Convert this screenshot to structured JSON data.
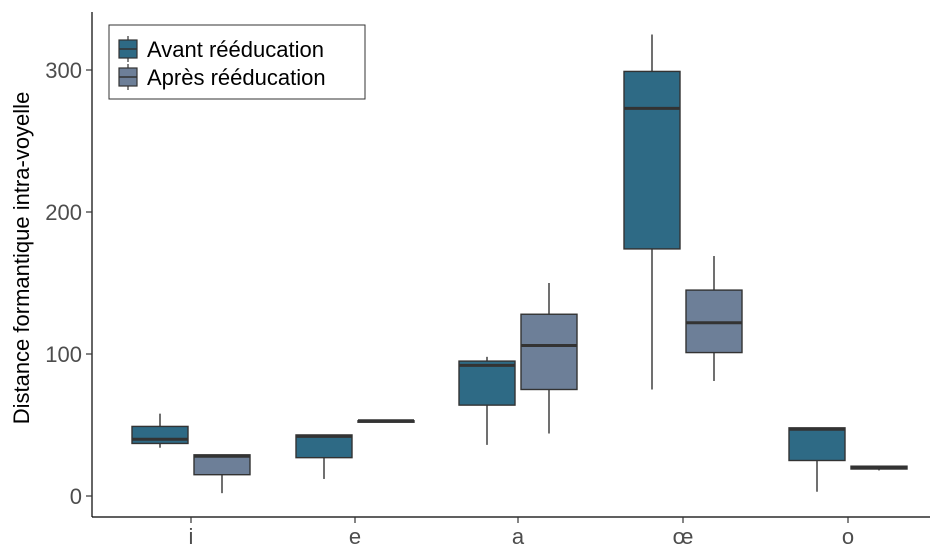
{
  "chart_data": {
    "type": "boxplot",
    "title": "",
    "xlabel": "",
    "ylabel": "Distance formantique intra-voyelle",
    "ylim": [
      -15,
      340
    ],
    "yticks": [
      0,
      100,
      200,
      300
    ],
    "grid": false,
    "legend_position": "top-left",
    "categories": [
      "i",
      "e",
      "a",
      "œ",
      "o"
    ],
    "series": [
      {
        "name": "Avant rééducation",
        "color": "#2e6a85",
        "boxes": [
          {
            "min": 34,
            "q1": 37,
            "median": 40,
            "q3": 49,
            "max": 58
          },
          {
            "min": 12,
            "q1": 27,
            "median": 42,
            "q3": 43,
            "max": 43
          },
          {
            "min": 36,
            "q1": 64,
            "median": 92,
            "q3": 95,
            "max": 98
          },
          {
            "min": 75,
            "q1": 174,
            "median": 273,
            "q3": 299,
            "max": 325
          },
          {
            "min": 3,
            "q1": 25,
            "median": 47,
            "q3": 48,
            "max": 48
          }
        ]
      },
      {
        "name": "Après rééducation",
        "color": "#6d7f98",
        "boxes": [
          {
            "min": 2,
            "q1": 15,
            "median": 28,
            "q3": 29,
            "max": 29
          },
          {
            "min": 52,
            "q1": 52,
            "median": 53,
            "q3": 53,
            "max": 53
          },
          {
            "min": 44,
            "q1": 75,
            "median": 106,
            "q3": 128,
            "max": 150
          },
          {
            "min": 81,
            "q1": 101,
            "median": 122,
            "q3": 145,
            "max": 169
          },
          {
            "min": 18,
            "q1": 19,
            "median": 20,
            "q3": 21,
            "max": 21
          }
        ]
      }
    ]
  }
}
